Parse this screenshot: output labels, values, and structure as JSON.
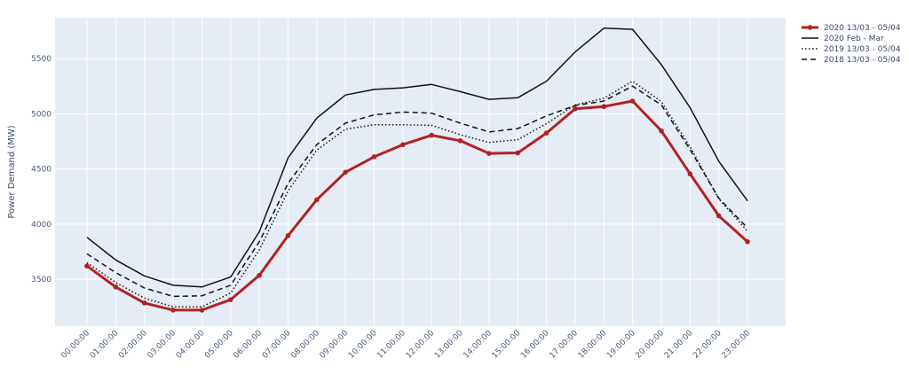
{
  "chart_data": {
    "type": "line",
    "title": "",
    "xlabel": "",
    "ylabel": "Power Demand (MW)",
    "categories": [
      "00:00:00",
      "01:00:00",
      "02:00:00",
      "03:00:00",
      "04:00:00",
      "05:00:00",
      "06:00:00",
      "07:00:00",
      "08:00:00",
      "09:00:00",
      "10:00:00",
      "11:00:00",
      "12:00:00",
      "13:00:00",
      "14:00:00",
      "15:00:00",
      "16:00:00",
      "17:00:00",
      "18:00:00",
      "19:00:00",
      "20:00:00",
      "21:00:00",
      "22:00:00",
      "23:00:00"
    ],
    "y_ticks": [
      3500,
      4000,
      4500,
      5000,
      5500
    ],
    "ylim": [
      3075,
      5870
    ],
    "grid": true,
    "legend_position": "top-right",
    "series": [
      {
        "name": "2020 13/03 - 05/04",
        "color": "#b22222",
        "style": "solid-markers",
        "values": [
          3620,
          3430,
          3285,
          3220,
          3220,
          3315,
          3535,
          3895,
          4220,
          4470,
          4610,
          4720,
          4805,
          4755,
          4640,
          4645,
          4825,
          5045,
          5065,
          5115,
          4845,
          4455,
          4075,
          3840
        ]
      },
      {
        "name": "2020 Feb - Mar",
        "color": "#111111",
        "style": "solid",
        "values": [
          3880,
          3675,
          3530,
          3445,
          3430,
          3520,
          3930,
          4600,
          4960,
          5170,
          5220,
          5235,
          5265,
          5200,
          5130,
          5145,
          5295,
          5560,
          5775,
          5765,
          5445,
          5055,
          4570,
          4210
        ]
      },
      {
        "name": "2019 13/03 - 05/04",
        "color": "#111111",
        "style": "dotted",
        "values": [
          3650,
          3470,
          3330,
          3250,
          3250,
          3375,
          3765,
          4300,
          4670,
          4860,
          4900,
          4900,
          4895,
          4810,
          4740,
          4765,
          4910,
          5080,
          5140,
          5295,
          5110,
          4700,
          4230,
          3935
        ]
      },
      {
        "name": "2018 13/03 - 05/04",
        "color": "#111111",
        "style": "dashed",
        "values": [
          3730,
          3560,
          3420,
          3345,
          3350,
          3445,
          3840,
          4370,
          4720,
          4915,
          4990,
          5015,
          5005,
          4915,
          4835,
          4865,
          4980,
          5075,
          5115,
          5250,
          5080,
          4675,
          4235,
          3965
        ]
      }
    ]
  }
}
